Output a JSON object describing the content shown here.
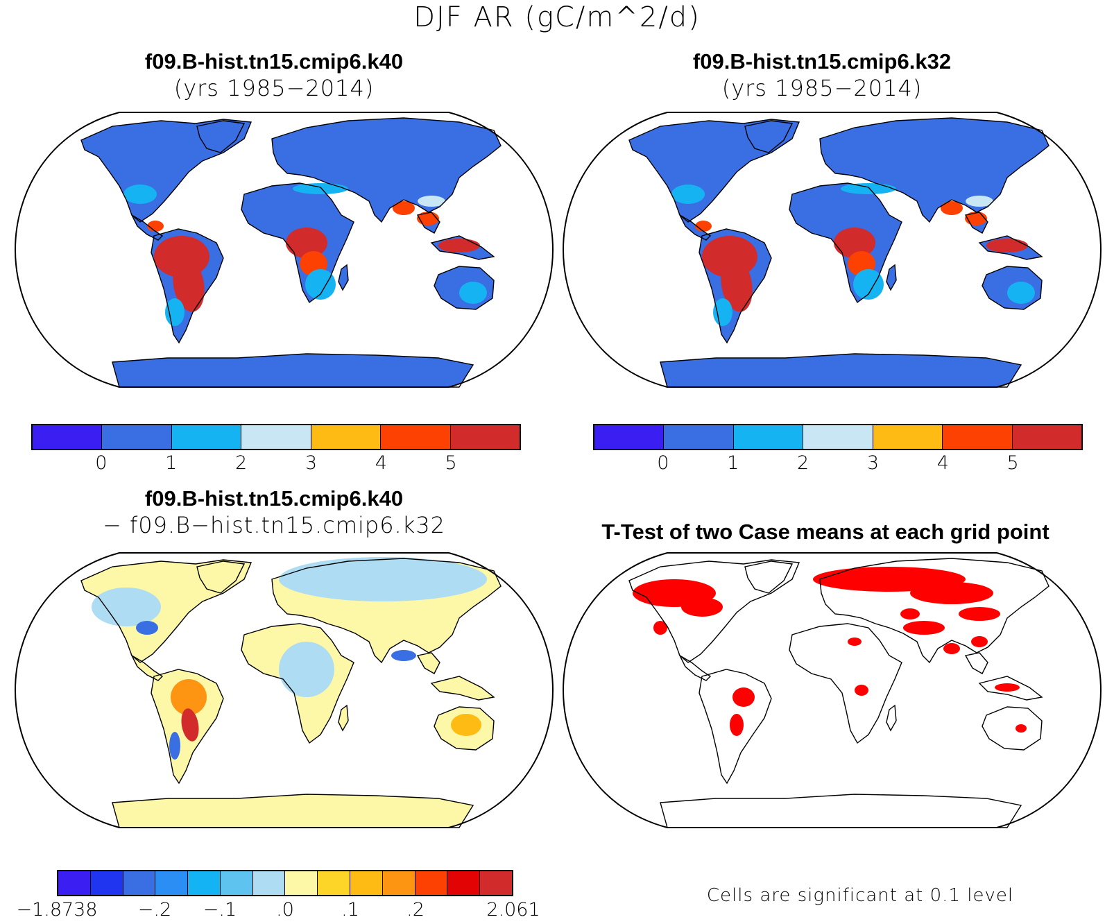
{
  "title": "DJF AR (gC/m^2/d)",
  "panels": {
    "top_left": {
      "title_bold": "f09.B-hist.tn15.cmip6.k40",
      "subtitle": "(yrs 1985−2014)"
    },
    "top_right": {
      "title_bold": "f09.B-hist.tn15.cmip6.k32",
      "subtitle": "(yrs 1985−2014)"
    },
    "bottom_left": {
      "title_bold": "f09.B-hist.tn15.cmip6.k40",
      "subtitle": "− f09.B−hist.tn15.cmip6.k32"
    },
    "bottom_right": {
      "title_bold": "T-Test of two Case means at each grid point",
      "note": "Cells are significant at 0.1 level"
    }
  },
  "colorbar_top": {
    "colors": [
      "#3b1ff2",
      "#3a6ee3",
      "#16b3f2",
      "#c8e6f4",
      "#fdbb13",
      "#fc4102",
      "#d22b2b"
    ],
    "tick_labels": [
      "0",
      "1",
      "2",
      "3",
      "4",
      "5"
    ]
  },
  "colorbar_diff": {
    "colors": [
      "#3b1ff2",
      "#2035f0",
      "#3a6ee3",
      "#2b8ef5",
      "#14b4f4",
      "#5fc3ef",
      "#aedcf2",
      "#fdf7a8",
      "#fcd528",
      "#fdbb13",
      "#fd9412",
      "#fc4102",
      "#e20404",
      "#d22b2b"
    ],
    "tick_labels": [
      "−1.8738",
      "−.2",
      "−.1",
      ".0",
      ".1",
      ".2",
      "2.061"
    ]
  },
  "map_colors": {
    "ocean": "#ffffff",
    "land_low": "#3a6ee3",
    "land_mid": "#16b3f2",
    "land_light": "#c8e6f4",
    "land_high": "#d22b2b",
    "land_orange": "#fc4102",
    "diff_yellow": "#fdf7a8",
    "diff_blue": "#aedcf2",
    "sig_red": "#ff0000"
  }
}
